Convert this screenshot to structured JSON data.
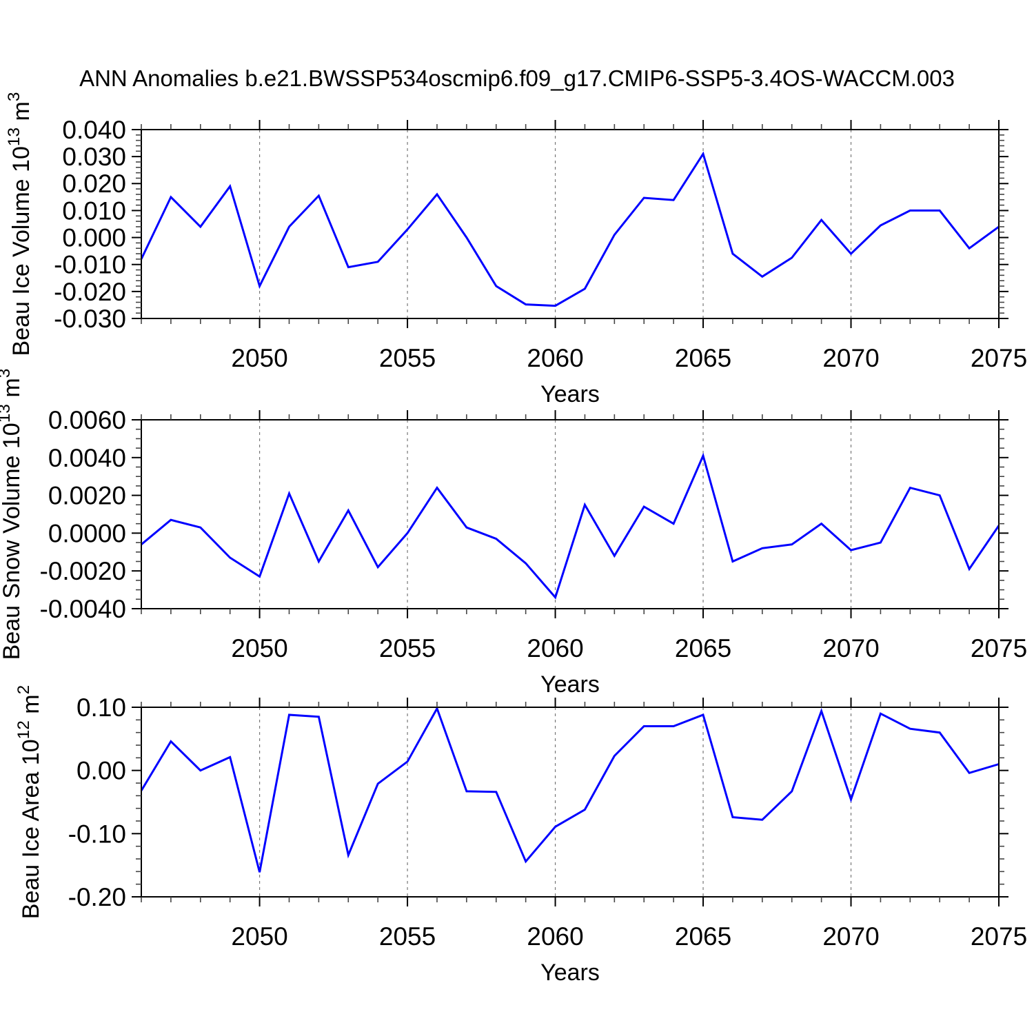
{
  "title": "ANN Anomalies b.e21.BWSSP534oscmip6.f09_g17.CMIP6-SSP5-3.4OS-WACCM.003",
  "colors": {
    "line": "#0000ff",
    "grid": "#777777",
    "frame": "#000000",
    "minor_tick": "#444444",
    "text": "#000000",
    "background": "#ffffff"
  },
  "x_axis": {
    "label": "Years",
    "range": [
      2046,
      2075
    ],
    "major_ticks": [
      {
        "label": "2050",
        "value": 2050
      },
      {
        "label": "2055",
        "value": 2055
      },
      {
        "label": "2060",
        "value": 2060
      },
      {
        "label": "2065",
        "value": 2065
      },
      {
        "label": "2070",
        "value": 2070
      },
      {
        "label": "2075",
        "value": 2075
      }
    ],
    "minor_tick_step": 1
  },
  "chart_data": [
    {
      "type": "line",
      "name": "ice-volume",
      "title": "",
      "xlabel": "Years",
      "ylabel": "Beau Ice Volume 10^13 m^3",
      "ylabel_parts": [
        {
          "t": "Beau Ice Volume 10",
          "sup": false
        },
        {
          "t": "13",
          "sup": true
        },
        {
          "t": " m",
          "sup": false
        },
        {
          "t": "3",
          "sup": true
        }
      ],
      "ylim": [
        -0.03,
        0.04
      ],
      "yticks": [
        {
          "label": "0.040",
          "value": 0.04
        },
        {
          "label": "0.030",
          "value": 0.03
        },
        {
          "label": "0.020",
          "value": 0.02
        },
        {
          "label": "0.010",
          "value": 0.01
        },
        {
          "label": "0.000",
          "value": 0.0
        },
        {
          "label": "-0.010",
          "value": -0.01
        },
        {
          "label": "-0.020",
          "value": -0.02
        },
        {
          "label": "-0.030",
          "value": -0.03
        }
      ],
      "yminor_step": 0.002,
      "grid": "dashed-vertical-at-major-x",
      "legend": "none",
      "x": [
        2046,
        2047,
        2048,
        2049,
        2050,
        2051,
        2052,
        2053,
        2054,
        2055,
        2056,
        2057,
        2058,
        2059,
        2060,
        2061,
        2062,
        2063,
        2064,
        2065,
        2066,
        2067,
        2068,
        2069,
        2070,
        2071,
        2072,
        2073,
        2074,
        2075
      ],
      "values": [
        -0.008,
        0.015,
        0.004,
        0.019,
        -0.018,
        0.004,
        0.0155,
        -0.011,
        -0.009,
        0.003,
        0.016,
        0.0,
        -0.018,
        -0.0248,
        -0.0253,
        -0.019,
        0.001,
        0.0147,
        0.0139,
        0.031,
        -0.006,
        -0.0145,
        -0.0075,
        0.0065,
        -0.006,
        0.0045,
        0.01,
        0.01,
        -0.004,
        0.004
      ]
    },
    {
      "type": "line",
      "name": "snow-volume",
      "title": "",
      "xlabel": "Years",
      "ylabel": "Beau Snow Volume 10^13 m^3",
      "ylabel_parts": [
        {
          "t": "Beau Snow Volume 10",
          "sup": false
        },
        {
          "t": "13",
          "sup": true
        },
        {
          "t": " m",
          "sup": false
        },
        {
          "t": "3",
          "sup": true
        }
      ],
      "ylim": [
        -0.004,
        0.006
      ],
      "yticks": [
        {
          "label": "0.0060",
          "value": 0.006
        },
        {
          "label": "0.0040",
          "value": 0.004
        },
        {
          "label": "0.0020",
          "value": 0.002
        },
        {
          "label": "0.0000",
          "value": 0.0
        },
        {
          "label": "-0.0020",
          "value": -0.002
        },
        {
          "label": "-0.0040",
          "value": -0.004
        }
      ],
      "yminor_step": 0.0005,
      "grid": "dashed-vertical-at-major-x",
      "legend": "none",
      "x": [
        2046,
        2047,
        2048,
        2049,
        2050,
        2051,
        2052,
        2053,
        2054,
        2055,
        2056,
        2057,
        2058,
        2059,
        2060,
        2061,
        2062,
        2063,
        2064,
        2065,
        2066,
        2067,
        2068,
        2069,
        2070,
        2071,
        2072,
        2073,
        2074,
        2075
      ],
      "values": [
        -0.0006,
        0.0007,
        0.0003,
        -0.0013,
        -0.0023,
        0.0021,
        -0.0015,
        0.0012,
        -0.0018,
        0.0,
        0.0024,
        0.0003,
        -0.0003,
        -0.0016,
        -0.0034,
        0.0015,
        -0.0012,
        0.0014,
        0.0005,
        0.0041,
        -0.0015,
        -0.0008,
        -0.0006,
        0.0005,
        -0.0009,
        -0.0005,
        0.0024,
        0.002,
        -0.0019,
        0.0004
      ]
    },
    {
      "type": "line",
      "name": "ice-area",
      "title": "",
      "xlabel": "Years",
      "ylabel": "Beau Ice Area 10^12 m^2",
      "ylabel_parts": [
        {
          "t": "Beau Ice Area 10",
          "sup": false
        },
        {
          "t": "12",
          "sup": true
        },
        {
          "t": " m",
          "sup": false
        },
        {
          "t": "2",
          "sup": true
        }
      ],
      "ylim": [
        -0.2,
        0.1
      ],
      "yticks": [
        {
          "label": "0.10",
          "value": 0.1
        },
        {
          "label": "0.00",
          "value": 0.0
        },
        {
          "label": "-0.10",
          "value": -0.1
        },
        {
          "label": "-0.20",
          "value": -0.2
        }
      ],
      "yminor_step": 0.02,
      "grid": "dashed-vertical-at-major-x",
      "legend": "none",
      "x": [
        2046,
        2047,
        2048,
        2049,
        2050,
        2051,
        2052,
        2053,
        2054,
        2055,
        2056,
        2057,
        2058,
        2059,
        2060,
        2061,
        2062,
        2063,
        2064,
        2065,
        2066,
        2067,
        2068,
        2069,
        2070,
        2071,
        2072,
        2073,
        2074,
        2075
      ],
      "values": [
        -0.032,
        0.046,
        0.0,
        0.021,
        -0.161,
        0.088,
        0.085,
        -0.134,
        -0.021,
        0.014,
        0.098,
        -0.033,
        -0.034,
        -0.144,
        -0.089,
        -0.062,
        0.023,
        0.07,
        0.07,
        0.088,
        -0.074,
        -0.078,
        -0.033,
        0.094,
        -0.046,
        0.09,
        0.066,
        0.06,
        -0.004,
        0.01
      ]
    }
  ]
}
